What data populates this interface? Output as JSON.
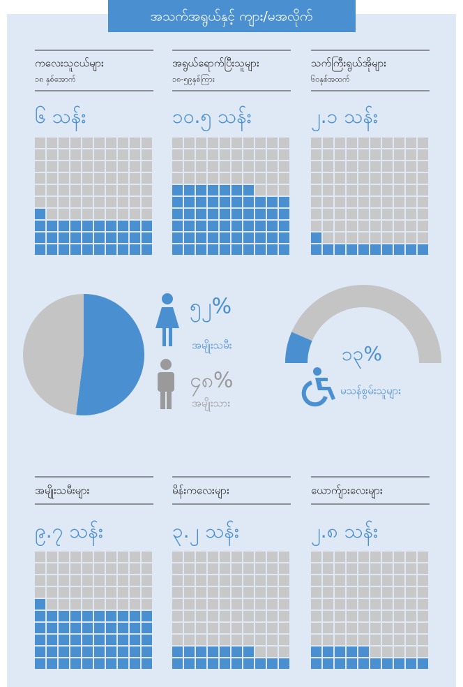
{
  "title": "အသက်အရွယ်နှင့် ကျား/မအလိုက်",
  "age_groups": [
    {
      "label": "ကလေးသူငယ်များ",
      "sublabel": "၁၈ နှစ်အောက်",
      "value_label": "၆ သန်း",
      "filled": 31
    },
    {
      "label": "အရွယ်ရောက်ပြီးသူများ",
      "sublabel": "၁၈-၅၉နှစ်ကြား",
      "value_label": "၁၀.၅ သန်း",
      "filled": 57
    },
    {
      "label": "သက်ကြီးရွယ်အိုများ",
      "sublabel": "၆၀နှစ်အထက်",
      "value_label": "၂.၁ သန်း",
      "filled": 11
    }
  ],
  "gender": {
    "type": "pie",
    "series": [
      {
        "name": "အမျိုးသမီး",
        "color": "#4a8fd0",
        "value": 52,
        "value_label": "၅၂%"
      },
      {
        "name": "အမျိုးသား",
        "color": "#c4c4c4",
        "value": 48,
        "value_label": "၄၈%"
      }
    ]
  },
  "disability": {
    "type": "gauge",
    "name": "မသန်စွမ်းသူများ",
    "value": 13,
    "value_label": "၁၃%",
    "color": "#4a8fd0",
    "track_color": "#c4c4c4"
  },
  "women_children": [
    {
      "label": "အမျိုးသမီးများ",
      "value_label": "၉.၇ သန်း",
      "filled": 51
    },
    {
      "label": "မိန်းကလေးများ",
      "value_label": "၃.၂ သန်း",
      "filled": 17
    },
    {
      "label": "ယောက်ျားလေးများ",
      "value_label": "၂.၈ သန်း",
      "filled": 15
    }
  ],
  "waffle_total": 100,
  "filled_color": "#4a8fd0",
  "empty_color": "#c8c8c8"
}
